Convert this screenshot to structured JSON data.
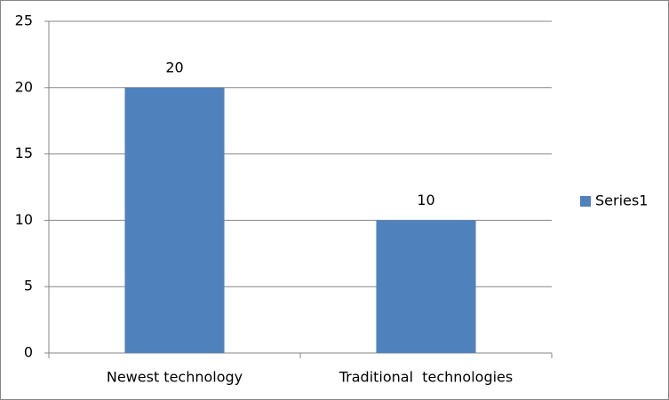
{
  "chart_data": {
    "type": "bar",
    "categories": [
      "Newest technology",
      "Traditional  technologies"
    ],
    "series": [
      {
        "name": "Series1",
        "color": "#4f81bd",
        "values": [
          20,
          10
        ]
      }
    ],
    "ylim": [
      0,
      25
    ],
    "yticks": [
      0,
      5,
      10,
      15,
      20,
      25
    ],
    "grid": true,
    "legend": "right"
  }
}
